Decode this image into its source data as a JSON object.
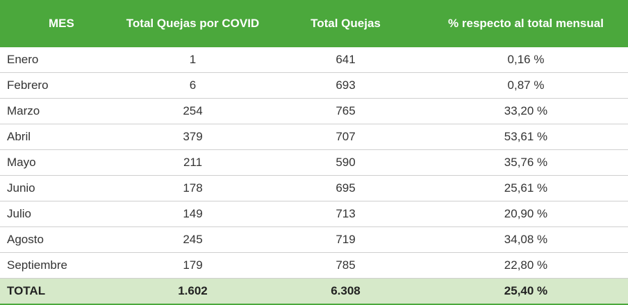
{
  "table": {
    "header": [
      "MES",
      "Total Quejas por COVID",
      "Total Quejas",
      "% respecto al total mensual"
    ],
    "rows": [
      [
        "Enero",
        "1",
        "641",
        "0,16 %"
      ],
      [
        "Febrero",
        "6",
        "693",
        "0,87 %"
      ],
      [
        "Marzo",
        "254",
        "765",
        "33,20 %"
      ],
      [
        "Abril",
        "379",
        "707",
        "53,61 %"
      ],
      [
        "Mayo",
        "211",
        "590",
        "35,76 %"
      ],
      [
        "Junio",
        "178",
        "695",
        "25,61 %"
      ],
      [
        "Julio",
        "149",
        "713",
        "20,90 %"
      ],
      [
        "Agosto",
        "245",
        "719",
        "34,08 %"
      ],
      [
        "Septiembre",
        "179",
        "785",
        "22,80 %"
      ]
    ],
    "total": [
      "TOTAL",
      "1.602",
      "6.308",
      "25,40 %"
    ]
  }
}
